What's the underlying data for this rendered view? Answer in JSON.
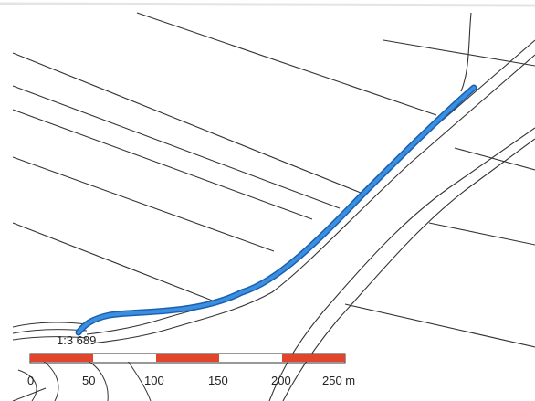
{
  "map": {
    "route_label": "1:3 689",
    "route_color": "#3a8fe0",
    "scale_bar": {
      "ticks": [
        "0",
        "50",
        "100",
        "150",
        "200",
        "250 m"
      ],
      "segment_colors": [
        "#e0462c",
        "#ffffff",
        "#e0462c",
        "#ffffff",
        "#e0462c"
      ],
      "border_color": "#333333"
    }
  }
}
